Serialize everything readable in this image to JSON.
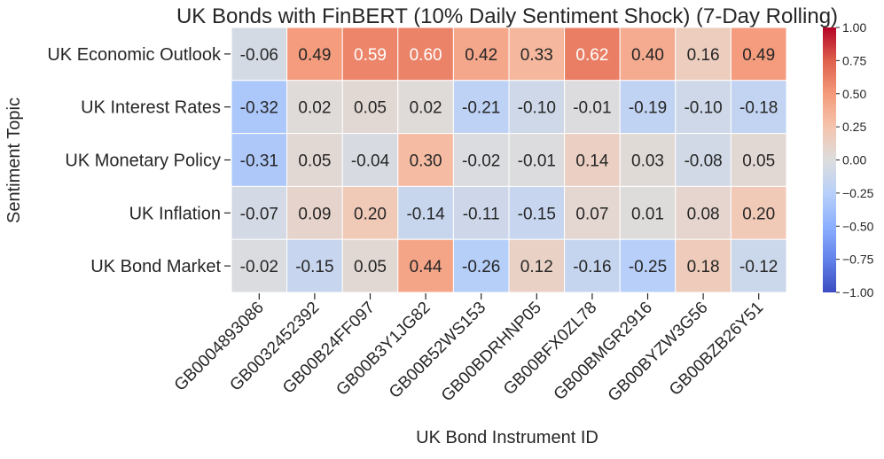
{
  "chart_data": {
    "type": "heatmap",
    "title": "UK Bonds with FinBERT (10% Daily Sentiment Shock) (7-Day Rolling)",
    "xlabel": "UK Bond Instrument ID",
    "ylabel": "Sentiment Topic",
    "x_categories": [
      "GB0004893086",
      "GB0032452392",
      "GB00B24FF097",
      "GB00B3Y1JG82",
      "GB00B52WS153",
      "GB00BDRHNP05",
      "GB00BFX0ZL78",
      "GB00BMGR2916",
      "GB00BYZW3G56",
      "GB00BZB26Y51"
    ],
    "y_categories": [
      "UK Economic Outlook",
      "UK Interest Rates",
      "UK Monetary Policy",
      "UK Inflation",
      "UK Bond Market"
    ],
    "values": [
      [
        -0.06,
        0.49,
        0.59,
        0.6,
        0.42,
        0.33,
        0.62,
        0.4,
        0.16,
        0.49
      ],
      [
        -0.32,
        0.02,
        0.05,
        0.02,
        -0.21,
        -0.1,
        -0.01,
        -0.19,
        -0.1,
        -0.18
      ],
      [
        -0.31,
        0.05,
        -0.04,
        0.3,
        -0.02,
        -0.01,
        0.14,
        0.03,
        -0.08,
        0.05
      ],
      [
        -0.07,
        0.09,
        0.2,
        -0.14,
        -0.11,
        -0.15,
        0.07,
        0.01,
        0.08,
        0.2
      ],
      [
        -0.02,
        -0.15,
        0.05,
        0.44,
        -0.26,
        0.12,
        -0.16,
        -0.25,
        0.18,
        -0.12
      ]
    ],
    "colormap": "coolwarm",
    "vmin": -1.0,
    "vmax": 1.0,
    "colorbar_ticks": [
      "1.00",
      "0.75",
      "0.50",
      "0.25",
      "0.00",
      "−0.25",
      "−0.50",
      "−0.75",
      "−1.00"
    ],
    "annotated": true,
    "value_format": "0.00"
  }
}
